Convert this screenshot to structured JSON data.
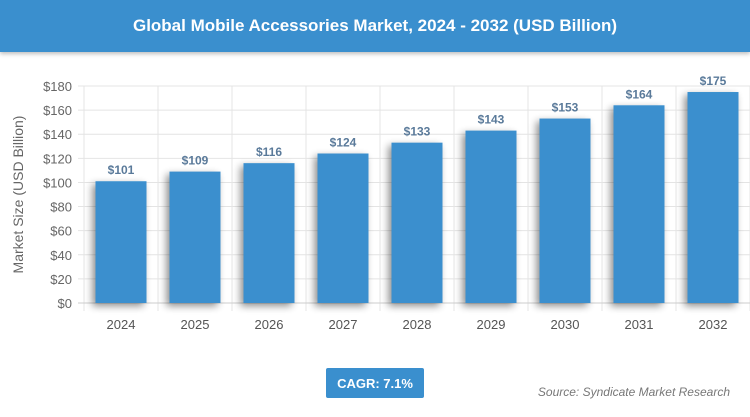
{
  "chart_data": {
    "type": "bar",
    "title": "Global Mobile Accessories Market, 2024 - 2032 (USD Billion)",
    "xlabel": "",
    "ylabel": "Market Size (USD Billion)",
    "categories": [
      "2024",
      "2025",
      "2026",
      "2027",
      "2028",
      "2029",
      "2030",
      "2031",
      "2032"
    ],
    "values": [
      101,
      109,
      116,
      124,
      133,
      143,
      153,
      164,
      175
    ],
    "data_labels": [
      "$101",
      "$109",
      "$116",
      "$124",
      "$133",
      "$143",
      "$153",
      "$164",
      "$175"
    ],
    "ylim": [
      0,
      180
    ],
    "yticks": [
      "$0",
      "$20",
      "$40",
      "$60",
      "$80",
      "$100",
      "$120",
      "$140",
      "$160",
      "$180"
    ],
    "grid": true,
    "bar_color": "#3a8fce",
    "label_color": "#5a7a9a"
  },
  "cagr": "CAGR: 7.1%",
  "source": "Source: Syndicate Market Research"
}
